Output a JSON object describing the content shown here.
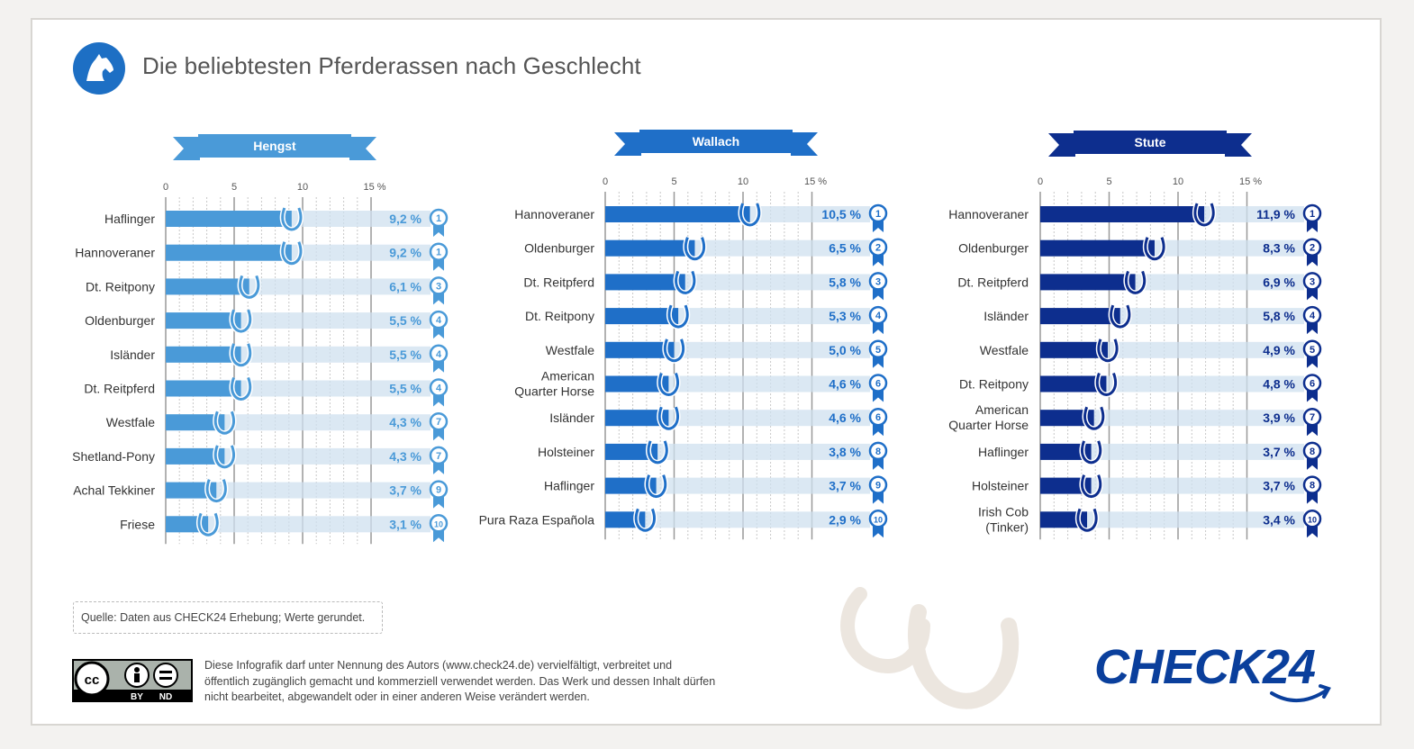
{
  "title": "Die beliebtesten Pferderassen nach Geschlecht",
  "source": "Quelle: Daten aus CHECK24 Erhebung; Werte gerundet.",
  "license": {
    "text": "Diese Infografik darf unter Nennung des Autors (www.check24.de) vervielfältigt, verbreitet und öffentlich zugänglich gemacht und kommerziell verwendet werden. Das Werk und dessen Inhalt dürfen nicht bearbeitet, abgewandelt oder in einer anderen Weise verändert werden.",
    "badge_labels": [
      "cc",
      "BY",
      "ND"
    ]
  },
  "brand": "CHECK24",
  "chart_data": [
    {
      "type": "bar",
      "title": "Hengst",
      "color": "#4a9ad8",
      "ticks": [
        "0",
        "5",
        "10",
        "15 %"
      ],
      "xlim": [
        0,
        15
      ],
      "categories": [
        "Haflinger",
        "Hannoveraner",
        "Dt. Reitpony",
        "Oldenburger",
        "Isländer",
        "Dt. Reitpferd",
        "Westfale",
        "Shetland-Pony",
        "Achal Tekkiner",
        "Friese"
      ],
      "values": [
        9.2,
        9.2,
        6.1,
        5.5,
        5.5,
        5.5,
        4.3,
        4.3,
        3.7,
        3.1
      ],
      "value_labels": [
        "9,2 %",
        "9,2 %",
        "6,1 %",
        "5,5 %",
        "5,5 %",
        "5,5 %",
        "4,3 %",
        "4,3 %",
        "3,7 %",
        "3,1 %"
      ],
      "ranks": [
        "1",
        "1",
        "3",
        "4",
        "4",
        "4",
        "7",
        "7",
        "9",
        "10"
      ]
    },
    {
      "type": "bar",
      "title": "Wallach",
      "color": "#1f6fc8",
      "ticks": [
        "0",
        "5",
        "10",
        "15 %"
      ],
      "xlim": [
        0,
        15
      ],
      "categories": [
        "Hannoveraner",
        "Oldenburger",
        "Dt. Reitpferd",
        "Dt. Reitpony",
        "Westfale",
        "American Quarter Horse",
        "Isländer",
        "Holsteiner",
        "Haflinger",
        "Pura Raza Española"
      ],
      "values": [
        10.5,
        6.5,
        5.8,
        5.3,
        5.0,
        4.6,
        4.6,
        3.8,
        3.7,
        2.9
      ],
      "value_labels": [
        "10,5 %",
        "6,5 %",
        "5,8 %",
        "5,3 %",
        "5,0 %",
        "4,6 %",
        "4,6 %",
        "3,8 %",
        "3,7 %",
        "2,9 %"
      ],
      "ranks": [
        "1",
        "2",
        "3",
        "4",
        "5",
        "6",
        "6",
        "8",
        "9",
        "10"
      ]
    },
    {
      "type": "bar",
      "title": "Stute",
      "color": "#0d2e8e",
      "ticks": [
        "0",
        "5",
        "10",
        "15 %"
      ],
      "xlim": [
        0,
        15
      ],
      "categories": [
        "Hannoveraner",
        "Oldenburger",
        "Dt. Reitpferd",
        "Isländer",
        "Westfale",
        "Dt. Reitpony",
        "American Quarter Horse",
        "Haflinger",
        "Holsteiner",
        "Irish Cob (Tinker)"
      ],
      "values": [
        11.9,
        8.3,
        6.9,
        5.8,
        4.9,
        4.8,
        3.9,
        3.7,
        3.7,
        3.4
      ],
      "value_labels": [
        "11,9 %",
        "8,3 %",
        "6,9 %",
        "5,8 %",
        "4,9 %",
        "4,8 %",
        "3,9 %",
        "3,7 %",
        "3,7 %",
        "3,4 %"
      ],
      "ranks": [
        "1",
        "2",
        "3",
        "4",
        "5",
        "6",
        "7",
        "8",
        "8",
        "10"
      ]
    }
  ]
}
